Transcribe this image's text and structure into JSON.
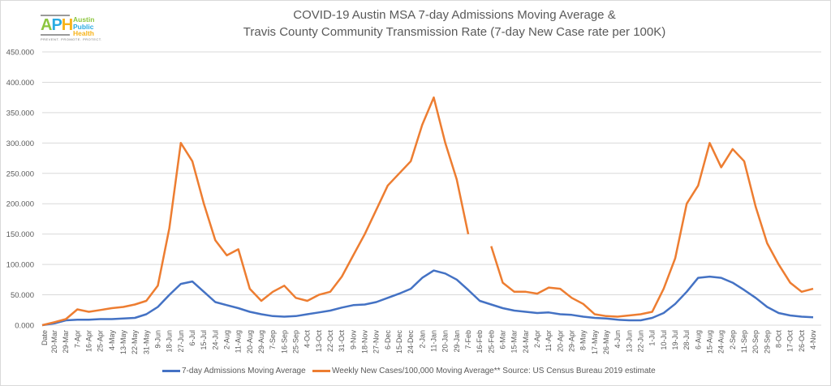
{
  "logo": {
    "abbrev": "APH",
    "line1": "Austin",
    "line2": "Public",
    "line3": "Health",
    "tagline": "PREVENT. PROMOTE. PROTECT."
  },
  "colors": {
    "admissions": "#4472C4",
    "cases": "#ED7D31",
    "grid": "#D9D9D9",
    "text": "#595959"
  },
  "chart_data": {
    "type": "line",
    "title": "COVID-19 Austin MSA 7-day Admissions Moving Average &",
    "subtitle": "Travis County Community Transmission Rate (7-day New Case rate per 100K)",
    "xlabel": "",
    "ylabel": "",
    "ylim": [
      0,
      450
    ],
    "yticks": [
      "0.000",
      "50.000",
      "100.000",
      "150.000",
      "200.000",
      "250.000",
      "300.000",
      "350.000",
      "400.000",
      "450.000"
    ],
    "grid": true,
    "legend_position": "bottom",
    "x_first_label": "Date",
    "x": [
      "20-Mar",
      "29-Mar",
      "7-Apr",
      "16-Apr",
      "25-Apr",
      "4-May",
      "13-May",
      "22-May",
      "31-May",
      "9-Jun",
      "18-Jun",
      "27-Jun",
      "6-Jul",
      "15-Jul",
      "24-Jul",
      "2-Aug",
      "11-Aug",
      "20-Aug",
      "29-Aug",
      "7-Sep",
      "16-Sep",
      "25-Sep",
      "4-Oct",
      "13-Oct",
      "22-Oct",
      "31-Oct",
      "9-Nov",
      "18-Nov",
      "27-Nov",
      "6-Dec",
      "15-Dec",
      "24-Dec",
      "2-Jan",
      "11-Jan",
      "20-Jan",
      "29-Jan",
      "7-Feb",
      "16-Feb",
      "25-Feb",
      "6-Mar",
      "15-Mar",
      "24-Mar",
      "2-Apr",
      "11-Apr",
      "20-Apr",
      "29-Apr",
      "8-May",
      "17-May",
      "26-May",
      "4-Jun",
      "13-Jun",
      "22-Jun",
      "1-Jul",
      "10-Jul",
      "19-Jul",
      "28-Jul",
      "6-Aug",
      "15-Aug",
      "24-Aug",
      "2-Sep",
      "11-Sep",
      "20-Sep",
      "29-Sep",
      "8-Oct",
      "17-Oct",
      "26-Oct",
      "4-Nov"
    ],
    "series": [
      {
        "name": "7-day Admissions Moving Average",
        "values": [
          3,
          8,
          9,
          9,
          10,
          10,
          11,
          12,
          18,
          30,
          50,
          68,
          72,
          55,
          38,
          33,
          28,
          22,
          18,
          15,
          14,
          15,
          18,
          21,
          24,
          29,
          33,
          34,
          38,
          45,
          52,
          60,
          78,
          90,
          85,
          75,
          58,
          40,
          34,
          28,
          24,
          22,
          20,
          21,
          18,
          17,
          14,
          12,
          11,
          9,
          8,
          8,
          12,
          20,
          35,
          55,
          78,
          80,
          78,
          70,
          58,
          45,
          30,
          20,
          16,
          14,
          13
        ]
      },
      {
        "name": "Weekly New Cases/100,000 Moving Average** Source: US Census Bureau 2019 estimate",
        "values": [
          5,
          10,
          26,
          22,
          25,
          28,
          30,
          34,
          40,
          65,
          160,
          300,
          270,
          200,
          140,
          115,
          125,
          60,
          40,
          55,
          65,
          45,
          40,
          50,
          55,
          80,
          115,
          150,
          190,
          230,
          250,
          270,
          330,
          375,
          300,
          240,
          150,
          null,
          130,
          70,
          55,
          55,
          52,
          62,
          60,
          45,
          35,
          18,
          15,
          14,
          16,
          18,
          22,
          60,
          110,
          200,
          230,
          300,
          260,
          290,
          270,
          195,
          135,
          100,
          70,
          55,
          60
        ]
      }
    ]
  },
  "legend": [
    {
      "label": "7-day Admissions Moving Average"
    },
    {
      "label": "Weekly New Cases/100,000 Moving Average** Source: US Census Bureau 2019 estimate"
    }
  ]
}
